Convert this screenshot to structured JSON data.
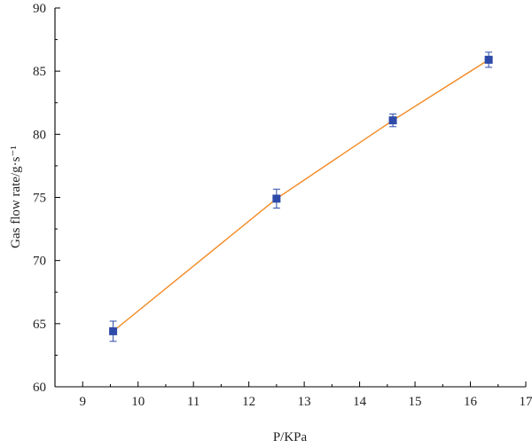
{
  "chart_data": {
    "type": "scatter",
    "title": "",
    "xlabel": "P/KPa",
    "ylabel": "Gas flow rate/g·s⁻¹",
    "xlim": [
      8.5,
      17
    ],
    "ylim": [
      60,
      90
    ],
    "xticks": [
      9,
      10,
      11,
      12,
      13,
      14,
      15,
      16,
      17
    ],
    "yticks": [
      60,
      65,
      70,
      75,
      80,
      85,
      90
    ],
    "grid": false,
    "legend": "none",
    "series": [
      {
        "x": [
          9.55,
          12.5,
          14.6,
          16.33
        ],
        "y": [
          64.4,
          74.9,
          81.1,
          85.9
        ],
        "yerr": [
          0.8,
          0.75,
          0.5,
          0.6
        ],
        "marker": "square",
        "marker_color": "#2e4aa8",
        "line_color": "#f28a24"
      }
    ]
  }
}
